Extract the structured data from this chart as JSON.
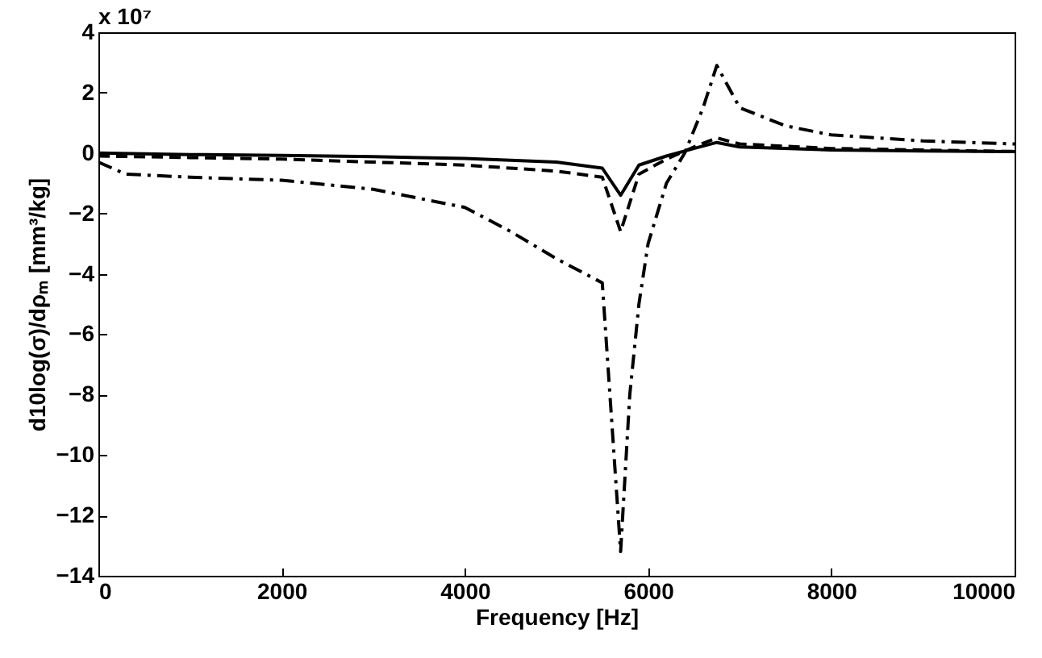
{
  "chart_data": {
    "type": "line",
    "xlabel": "Frequency [Hz]",
    "ylabel": "d10log(σ)/dρₘ [mm³/kg]",
    "annotations": [
      "x 10⁷"
    ],
    "xlim": [
      0,
      10000
    ],
    "xticks": [
      0,
      2000,
      4000,
      6000,
      8000,
      10000
    ],
    "ylim": [
      -14,
      4
    ],
    "yticks": [
      -14,
      -12,
      -10,
      -8,
      -6,
      -4,
      -2,
      0,
      2,
      4
    ],
    "grid": false,
    "series": [
      {
        "color": "#000000",
        "line_style": "solid",
        "x": [
          0,
          1000,
          2000,
          3000,
          4000,
          5000,
          5500,
          5700,
          5900,
          6200,
          6500,
          6750,
          7000,
          8000,
          9000,
          10000
        ],
        "values": [
          0,
          -0.05,
          -0.08,
          -0.12,
          -0.18,
          -0.3,
          -0.5,
          -1.4,
          -0.4,
          -0.1,
          0.15,
          0.35,
          0.2,
          0.1,
          0.07,
          0.05
        ]
      },
      {
        "color": "#000000",
        "line_style": "dashed",
        "x": [
          0,
          1000,
          2000,
          3000,
          4000,
          5000,
          5500,
          5700,
          5900,
          6200,
          6500,
          6750,
          7000,
          8000,
          9000,
          10000
        ],
        "values": [
          -0.1,
          -0.15,
          -0.2,
          -0.3,
          -0.4,
          -0.6,
          -0.8,
          -2.6,
          -0.7,
          -0.2,
          0.2,
          0.5,
          0.3,
          0.15,
          0.1,
          0.05
        ]
      },
      {
        "color": "#000000",
        "line_style": "dashdot",
        "x": [
          0,
          300,
          1000,
          2000,
          3000,
          4000,
          4500,
          5000,
          5500,
          5700,
          5800,
          5900,
          6000,
          6200,
          6400,
          6600,
          6750,
          7000,
          7500,
          8000,
          9000,
          10000
        ],
        "values": [
          -0.3,
          -0.7,
          -0.8,
          -0.9,
          -1.2,
          -1.8,
          -2.6,
          -3.5,
          -4.3,
          -13.2,
          -8,
          -5,
          -3,
          -1,
          0,
          1.5,
          2.9,
          1.5,
          0.9,
          0.6,
          0.4,
          0.3
        ]
      }
    ]
  }
}
